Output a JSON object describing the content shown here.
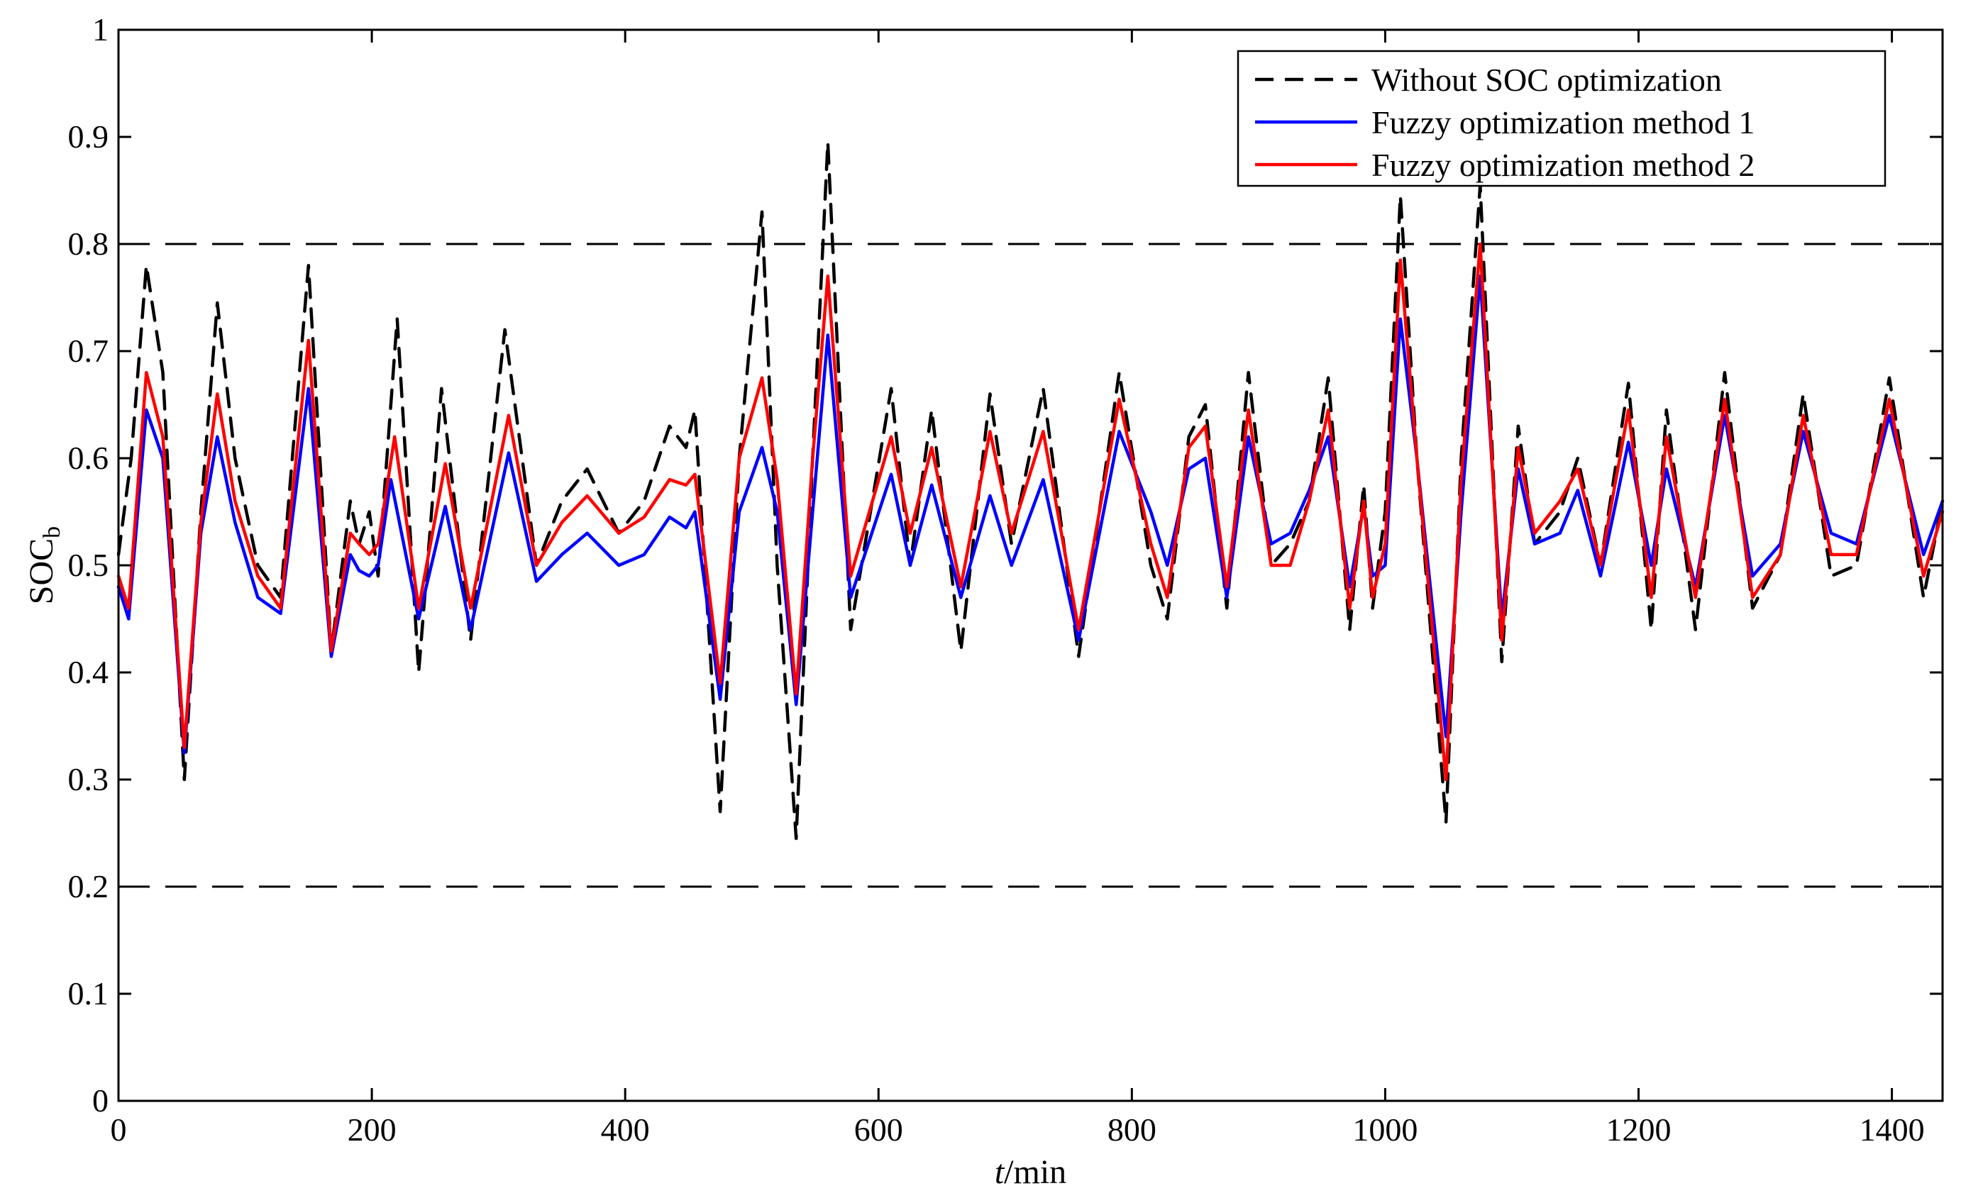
{
  "chart_data": {
    "type": "line",
    "title": "",
    "xlabel_italic": "t",
    "xlabel_rest": "/min",
    "ylabel_main": "SOC",
    "ylabel_sub": "b",
    "xlim": [
      0,
      1440
    ],
    "ylim": [
      0,
      1
    ],
    "xticks": [
      0,
      200,
      400,
      600,
      800,
      1000,
      1200,
      1400
    ],
    "xtick_labels": [
      "0",
      "200",
      "400",
      "600",
      "800",
      "1000",
      "1200",
      "1400"
    ],
    "yticks": [
      0,
      0.1,
      0.2,
      0.3,
      0.4,
      0.5,
      0.6,
      0.7,
      0.8,
      0.9,
      1
    ],
    "ytick_labels": [
      "0",
      "0.1",
      "0.2",
      "0.3",
      "0.4",
      "0.5",
      "0.6",
      "0.7",
      "0.8",
      "0.9",
      "1"
    ],
    "grid": false,
    "reference_lines": [
      {
        "y": 0.8,
        "color": "#000000",
        "style": "dashed"
      },
      {
        "y": 0.2,
        "color": "#000000",
        "style": "dashed"
      }
    ],
    "legend_placement": "top-right",
    "series": [
      {
        "name": "Without SOC optimization",
        "color": "#000000",
        "style": "dashed",
        "points": [
          [
            0,
            0.51
          ],
          [
            10,
            0.6
          ],
          [
            22,
            0.78
          ],
          [
            35,
            0.68
          ],
          [
            52,
            0.3
          ],
          [
            65,
            0.55
          ],
          [
            78,
            0.745
          ],
          [
            92,
            0.6
          ],
          [
            110,
            0.5
          ],
          [
            128,
            0.47
          ],
          [
            150,
            0.78
          ],
          [
            168,
            0.42
          ],
          [
            183,
            0.56
          ],
          [
            190,
            0.52
          ],
          [
            198,
            0.55
          ],
          [
            205,
            0.49
          ],
          [
            220,
            0.73
          ],
          [
            237,
            0.4
          ],
          [
            255,
            0.665
          ],
          [
            278,
            0.43
          ],
          [
            305,
            0.72
          ],
          [
            330,
            0.5
          ],
          [
            350,
            0.56
          ],
          [
            370,
            0.59
          ],
          [
            395,
            0.53
          ],
          [
            415,
            0.56
          ],
          [
            435,
            0.63
          ],
          [
            448,
            0.61
          ],
          [
            455,
            0.645
          ],
          [
            475,
            0.27
          ],
          [
            490,
            0.6
          ],
          [
            508,
            0.83
          ],
          [
            520,
            0.5
          ],
          [
            535,
            0.245
          ],
          [
            548,
            0.6
          ],
          [
            560,
            0.895
          ],
          [
            578,
            0.44
          ],
          [
            610,
            0.665
          ],
          [
            625,
            0.5
          ],
          [
            642,
            0.645
          ],
          [
            665,
            0.42
          ],
          [
            688,
            0.66
          ],
          [
            705,
            0.52
          ],
          [
            730,
            0.665
          ],
          [
            758,
            0.415
          ],
          [
            790,
            0.68
          ],
          [
            815,
            0.5
          ],
          [
            828,
            0.45
          ],
          [
            845,
            0.62
          ],
          [
            858,
            0.65
          ],
          [
            875,
            0.46
          ],
          [
            892,
            0.68
          ],
          [
            910,
            0.5
          ],
          [
            925,
            0.52
          ],
          [
            940,
            0.56
          ],
          [
            955,
            0.675
          ],
          [
            972,
            0.44
          ],
          [
            983,
            0.575
          ],
          [
            990,
            0.46
          ],
          [
            1000,
            0.55
          ],
          [
            1012,
            0.845
          ],
          [
            1025,
            0.6
          ],
          [
            1048,
            0.26
          ],
          [
            1060,
            0.6
          ],
          [
            1075,
            0.855
          ],
          [
            1092,
            0.41
          ],
          [
            1105,
            0.63
          ],
          [
            1118,
            0.52
          ],
          [
            1138,
            0.55
          ],
          [
            1152,
            0.6
          ],
          [
            1170,
            0.5
          ],
          [
            1192,
            0.67
          ],
          [
            1210,
            0.44
          ],
          [
            1222,
            0.645
          ],
          [
            1245,
            0.44
          ],
          [
            1268,
            0.68
          ],
          [
            1290,
            0.46
          ],
          [
            1312,
            0.51
          ],
          [
            1330,
            0.66
          ],
          [
            1352,
            0.49
          ],
          [
            1372,
            0.5
          ],
          [
            1398,
            0.675
          ],
          [
            1425,
            0.47
          ],
          [
            1440,
            0.56
          ]
        ]
      },
      {
        "name": "Fuzzy optimization method 1",
        "color": "#0000ff",
        "style": "solid",
        "points": [
          [
            0,
            0.48
          ],
          [
            8,
            0.45
          ],
          [
            22,
            0.645
          ],
          [
            35,
            0.6
          ],
          [
            52,
            0.325
          ],
          [
            65,
            0.53
          ],
          [
            78,
            0.62
          ],
          [
            92,
            0.54
          ],
          [
            110,
            0.47
          ],
          [
            128,
            0.455
          ],
          [
            150,
            0.665
          ],
          [
            168,
            0.415
          ],
          [
            183,
            0.51
          ],
          [
            190,
            0.495
          ],
          [
            198,
            0.49
          ],
          [
            205,
            0.5
          ],
          [
            215,
            0.58
          ],
          [
            237,
            0.45
          ],
          [
            258,
            0.555
          ],
          [
            278,
            0.44
          ],
          [
            308,
            0.605
          ],
          [
            330,
            0.485
          ],
          [
            350,
            0.51
          ],
          [
            370,
            0.53
          ],
          [
            395,
            0.5
          ],
          [
            415,
            0.51
          ],
          [
            435,
            0.545
          ],
          [
            448,
            0.535
          ],
          [
            455,
            0.55
          ],
          [
            475,
            0.375
          ],
          [
            490,
            0.55
          ],
          [
            508,
            0.61
          ],
          [
            520,
            0.55
          ],
          [
            535,
            0.37
          ],
          [
            548,
            0.55
          ],
          [
            560,
            0.715
          ],
          [
            578,
            0.47
          ],
          [
            610,
            0.585
          ],
          [
            625,
            0.5
          ],
          [
            642,
            0.575
          ],
          [
            665,
            0.47
          ],
          [
            688,
            0.565
          ],
          [
            705,
            0.5
          ],
          [
            730,
            0.58
          ],
          [
            758,
            0.43
          ],
          [
            790,
            0.625
          ],
          [
            815,
            0.55
          ],
          [
            828,
            0.5
          ],
          [
            845,
            0.59
          ],
          [
            858,
            0.6
          ],
          [
            875,
            0.47
          ],
          [
            892,
            0.62
          ],
          [
            910,
            0.52
          ],
          [
            925,
            0.53
          ],
          [
            940,
            0.57
          ],
          [
            955,
            0.62
          ],
          [
            972,
            0.48
          ],
          [
            983,
            0.555
          ],
          [
            990,
            0.49
          ],
          [
            1000,
            0.5
          ],
          [
            1012,
            0.73
          ],
          [
            1025,
            0.6
          ],
          [
            1048,
            0.34
          ],
          [
            1060,
            0.55
          ],
          [
            1075,
            0.77
          ],
          [
            1092,
            0.45
          ],
          [
            1105,
            0.59
          ],
          [
            1118,
            0.52
          ],
          [
            1138,
            0.53
          ],
          [
            1152,
            0.57
          ],
          [
            1170,
            0.49
          ],
          [
            1192,
            0.615
          ],
          [
            1210,
            0.5
          ],
          [
            1222,
            0.59
          ],
          [
            1245,
            0.48
          ],
          [
            1268,
            0.64
          ],
          [
            1290,
            0.49
          ],
          [
            1312,
            0.52
          ],
          [
            1330,
            0.625
          ],
          [
            1352,
            0.53
          ],
          [
            1372,
            0.52
          ],
          [
            1398,
            0.64
          ],
          [
            1425,
            0.51
          ],
          [
            1440,
            0.56
          ]
        ]
      },
      {
        "name": "Fuzzy optimization method 2",
        "color": "#ff0000",
        "style": "solid",
        "points": [
          [
            0,
            0.49
          ],
          [
            8,
            0.46
          ],
          [
            22,
            0.68
          ],
          [
            35,
            0.62
          ],
          [
            52,
            0.33
          ],
          [
            65,
            0.54
          ],
          [
            78,
            0.66
          ],
          [
            92,
            0.56
          ],
          [
            110,
            0.49
          ],
          [
            128,
            0.46
          ],
          [
            150,
            0.71
          ],
          [
            168,
            0.42
          ],
          [
            183,
            0.53
          ],
          [
            190,
            0.52
          ],
          [
            198,
            0.51
          ],
          [
            205,
            0.52
          ],
          [
            218,
            0.62
          ],
          [
            237,
            0.46
          ],
          [
            258,
            0.595
          ],
          [
            278,
            0.46
          ],
          [
            308,
            0.64
          ],
          [
            330,
            0.5
          ],
          [
            350,
            0.54
          ],
          [
            370,
            0.565
          ],
          [
            395,
            0.53
          ],
          [
            415,
            0.545
          ],
          [
            435,
            0.58
          ],
          [
            448,
            0.575
          ],
          [
            455,
            0.585
          ],
          [
            475,
            0.39
          ],
          [
            490,
            0.6
          ],
          [
            508,
            0.675
          ],
          [
            520,
            0.58
          ],
          [
            535,
            0.38
          ],
          [
            548,
            0.6
          ],
          [
            560,
            0.77
          ],
          [
            578,
            0.49
          ],
          [
            610,
            0.62
          ],
          [
            625,
            0.53
          ],
          [
            642,
            0.61
          ],
          [
            665,
            0.48
          ],
          [
            688,
            0.625
          ],
          [
            705,
            0.53
          ],
          [
            730,
            0.625
          ],
          [
            758,
            0.44
          ],
          [
            790,
            0.655
          ],
          [
            815,
            0.52
          ],
          [
            828,
            0.47
          ],
          [
            845,
            0.61
          ],
          [
            858,
            0.63
          ],
          [
            875,
            0.48
          ],
          [
            892,
            0.645
          ],
          [
            910,
            0.5
          ],
          [
            925,
            0.5
          ],
          [
            940,
            0.56
          ],
          [
            955,
            0.645
          ],
          [
            972,
            0.46
          ],
          [
            983,
            0.56
          ],
          [
            990,
            0.47
          ],
          [
            1000,
            0.52
          ],
          [
            1012,
            0.785
          ],
          [
            1025,
            0.6
          ],
          [
            1048,
            0.3
          ],
          [
            1060,
            0.58
          ],
          [
            1075,
            0.8
          ],
          [
            1092,
            0.43
          ],
          [
            1105,
            0.61
          ],
          [
            1118,
            0.53
          ],
          [
            1138,
            0.56
          ],
          [
            1152,
            0.59
          ],
          [
            1170,
            0.5
          ],
          [
            1192,
            0.645
          ],
          [
            1210,
            0.47
          ],
          [
            1222,
            0.62
          ],
          [
            1245,
            0.47
          ],
          [
            1268,
            0.655
          ],
          [
            1290,
            0.47
          ],
          [
            1312,
            0.51
          ],
          [
            1330,
            0.64
          ],
          [
            1352,
            0.51
          ],
          [
            1372,
            0.51
          ],
          [
            1398,
            0.655
          ],
          [
            1425,
            0.49
          ],
          [
            1440,
            0.55
          ]
        ]
      }
    ]
  }
}
